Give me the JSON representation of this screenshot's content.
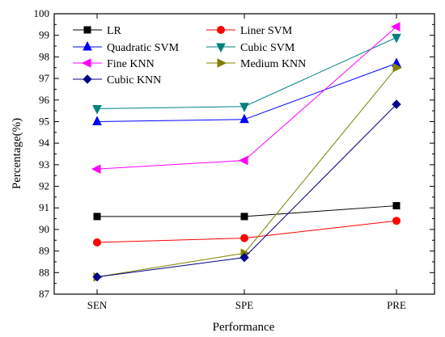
{
  "chart_data": {
    "type": "line",
    "title": "",
    "xlabel": "Performance",
    "ylabel": "Percentage(%)",
    "categories": [
      "SEN",
      "SPE",
      "PRE"
    ],
    "ylim": [
      87,
      100
    ],
    "yticks": [
      87,
      88,
      89,
      90,
      91,
      92,
      93,
      94,
      95,
      96,
      97,
      98,
      99,
      100
    ],
    "grid": false,
    "legend_position": "top-left",
    "series": [
      {
        "name": "LR",
        "values": [
          90.6,
          90.6,
          91.1
        ],
        "color": "#000000",
        "marker": "square"
      },
      {
        "name": "Liner SVM",
        "values": [
          89.4,
          89.6,
          90.4
        ],
        "color": "#ff0000",
        "marker": "circle"
      },
      {
        "name": "Quadratic SVM",
        "values": [
          95.0,
          95.1,
          97.7
        ],
        "color": "#0000ff",
        "marker": "triangle-up"
      },
      {
        "name": "Cubic SVM",
        "values": [
          95.6,
          95.7,
          98.9
        ],
        "color": "#008080",
        "marker": "triangle-down"
      },
      {
        "name": "Fine KNN",
        "values": [
          92.8,
          93.2,
          99.4
        ],
        "color": "#ff00ff",
        "marker": "triangle-left"
      },
      {
        "name": "Medium KNN",
        "values": [
          87.8,
          88.9,
          97.5
        ],
        "color": "#808000",
        "marker": "triangle-right"
      },
      {
        "name": "Cubic KNN",
        "values": [
          87.8,
          88.7,
          95.8
        ],
        "color": "#00008b",
        "marker": "diamond"
      }
    ]
  }
}
